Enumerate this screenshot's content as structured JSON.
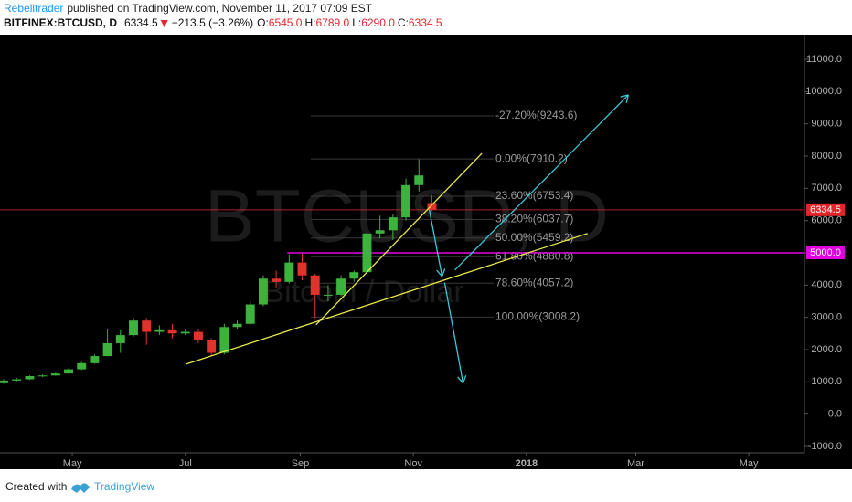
{
  "header": {
    "author": "Rebelltrader",
    "published": "published on TradingView.com, November 11, 2017 07:09 EST"
  },
  "chart_data": {
    "type": "candlestick",
    "symbol": "BITFINEX:BTCUSD, D",
    "last": "6334.5",
    "change": "−213.5 (−3.26%)",
    "ohlc": [
      {
        "label": "O:",
        "value": "6545.0"
      },
      {
        "label": "H:",
        "value": "6789.0"
      },
      {
        "label": "L:",
        "value": "6290.0"
      },
      {
        "label": "C:",
        "value": "6334.5"
      }
    ],
    "watermark": "BTCUSD, D",
    "watermark_sub": "Bitcoin / Dollar",
    "up_color": "#3cb33c",
    "down_color": "#e0332b",
    "x": [
      84,
      91,
      98,
      105,
      112,
      119,
      126,
      133,
      140,
      147,
      154,
      161,
      168,
      175,
      182,
      189,
      196,
      203,
      210,
      217,
      224,
      231,
      238,
      245,
      252,
      259,
      266,
      273,
      280,
      287,
      294,
      301,
      308,
      315
    ],
    "open": [
      960,
      1040,
      1080,
      1180,
      1200,
      1260,
      1390,
      1580,
      1800,
      2200,
      2450,
      2900,
      2550,
      2600,
      2500,
      2550,
      2300,
      1900,
      2700,
      2800,
      3400,
      4200,
      4100,
      4700,
      4300,
      3700,
      3700,
      4200,
      4400,
      5600,
      5700,
      6100,
      7100,
      6545
    ],
    "high": [
      1080,
      1120,
      1200,
      1230,
      1280,
      1420,
      1620,
      1850,
      2650,
      2600,
      2980,
      2980,
      2750,
      2800,
      2650,
      2650,
      2350,
      2800,
      2900,
      3500,
      4300,
      4450,
      4950,
      4980,
      4350,
      4000,
      4300,
      4450,
      5850,
      6150,
      6200,
      7300,
      7900,
      6789
    ],
    "low": [
      940,
      1020,
      1060,
      1150,
      1190,
      1250,
      1370,
      1560,
      1790,
      1900,
      2400,
      2150,
      2450,
      2350,
      2450,
      2200,
      1830,
      1850,
      2650,
      2750,
      3350,
      3900,
      4050,
      4150,
      2980,
      3500,
      3650,
      4100,
      4350,
      5450,
      5400,
      6000,
      6900,
      6290
    ],
    "close": [
      1040,
      1080,
      1180,
      1200,
      1260,
      1390,
      1580,
      1800,
      2200,
      2450,
      2900,
      2550,
      2600,
      2500,
      2550,
      2300,
      1900,
      2700,
      2800,
      3400,
      4200,
      4100,
      4700,
      4300,
      3700,
      3700,
      4200,
      4400,
      5600,
      5700,
      6100,
      7100,
      7400,
      6334.5
    ],
    "xlim": [
      82,
      516
    ],
    "xticks": [
      {
        "value": 121,
        "label": "May"
      },
      {
        "value": 182,
        "label": "Jul"
      },
      {
        "value": 244,
        "label": "Sep"
      },
      {
        "value": 305,
        "label": "Nov"
      },
      {
        "value": 366,
        "label": "2018"
      },
      {
        "value": 425,
        "label": "Mar"
      },
      {
        "value": 486,
        "label": "May"
      }
    ],
    "ylim": [
      -1000,
      11000
    ],
    "yticks": [
      {
        "value": -1000,
        "label": "-1000.0"
      },
      {
        "value": 0,
        "label": "0.0"
      },
      {
        "value": 1000,
        "label": "1000.0"
      },
      {
        "value": 2000,
        "label": "2000.0"
      },
      {
        "value": 3000,
        "label": "3000.0"
      },
      {
        "value": 4000,
        "label": "4000.0"
      },
      {
        "value": 5000,
        "label": "5000.0"
      },
      {
        "value": 6000,
        "label": "6000.0"
      },
      {
        "value": 7000,
        "label": "7000.0"
      },
      {
        "value": 8000,
        "label": "8000.0"
      },
      {
        "value": 9000,
        "label": "9000.0"
      },
      {
        "value": 10000,
        "label": "10000.0"
      },
      {
        "value": 11000,
        "label": "11000.0"
      }
    ],
    "price_lines": [
      {
        "value": 6334.5,
        "color": "#e3262c",
        "start": 82
      },
      {
        "value": 5000,
        "label": "5000.0",
        "color": "#e000e0",
        "start": 237
      }
    ],
    "fib_levels": [
      {
        "value": 9243.6,
        "label": "-27.20%(9243.6)"
      },
      {
        "value": 7910.2,
        "label": "0.00%(7910.2)"
      },
      {
        "value": 6753.4,
        "label": "23.60%(6753.4)"
      },
      {
        "value": 6037.7,
        "label": "38.20%(6037.7)"
      },
      {
        "value": 5459.2,
        "label": "50.00%(5459.2)"
      },
      {
        "value": 4880.8,
        "label": "61.80%(4880.8)"
      },
      {
        "value": 4057.2,
        "label": "78.60%(4057.2)"
      },
      {
        "value": 3008.2,
        "label": "100.00%(3008.2)"
      }
    ],
    "trendlines": [
      {
        "x": [
          182.6,
          399
        ],
        "y": [
          1555,
          5600
        ],
        "color": "#e8e84a"
      },
      {
        "x": [
          252.5,
          342
        ],
        "y": [
          2770,
          8088
        ],
        "color": "#e8e84a"
      }
    ],
    "arrows": [
      {
        "x": [
          327.4,
          421
        ],
        "y": [
          4468,
          9898
        ],
        "color": "#3cc8d8"
      },
      {
        "x": [
          313.6,
          320.5
        ],
        "y": [
          6335,
          4270
        ],
        "color": "#3cc8d8"
      },
      {
        "x": [
          321.9,
          331.8
        ],
        "y": [
          4072,
          962
        ],
        "color": "#3cc8d8"
      }
    ]
  },
  "footer": {
    "created": "Created with",
    "brand": "TradingView"
  }
}
